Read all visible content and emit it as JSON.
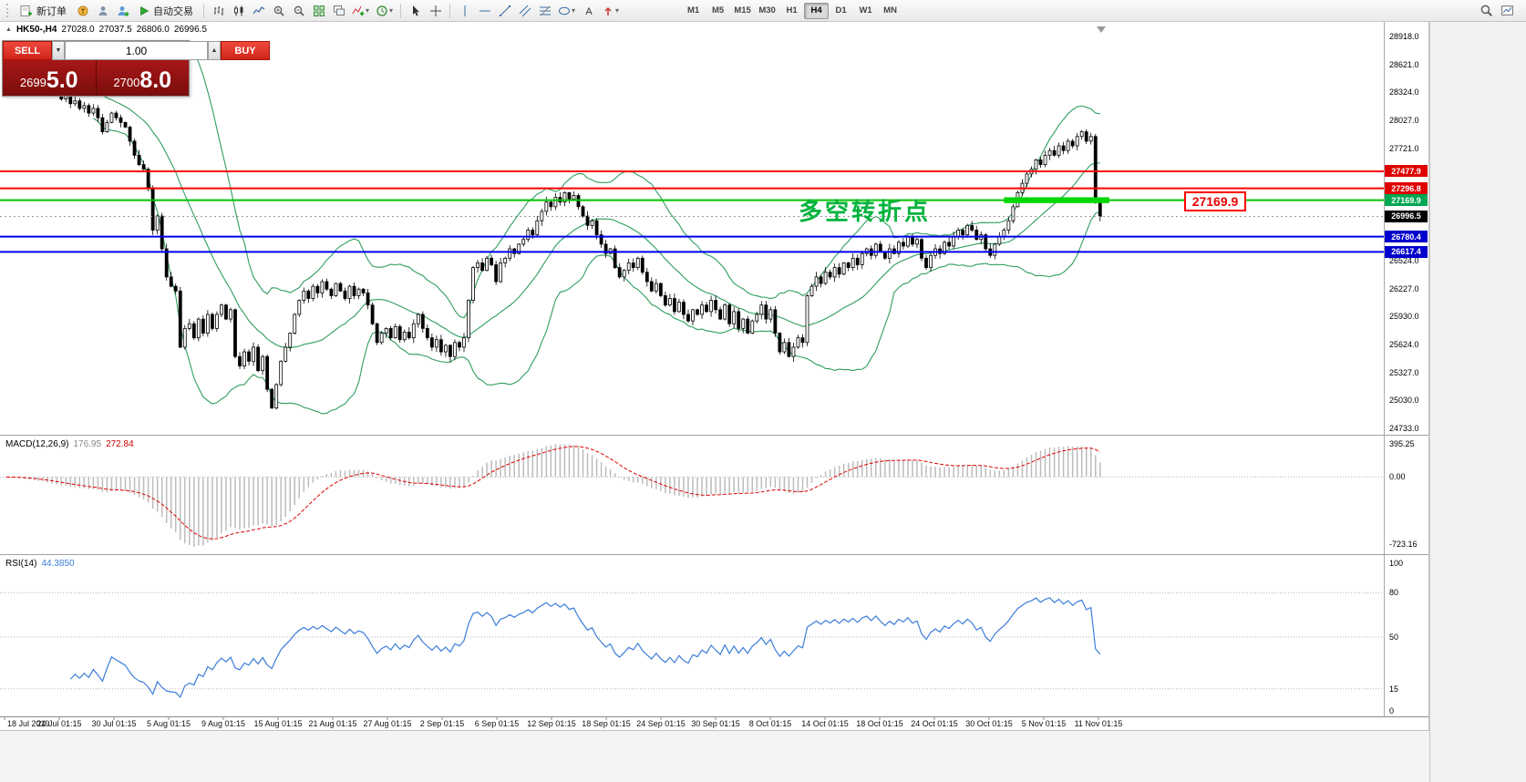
{
  "toolbar": {
    "new_order_label": "新订单",
    "autotrading_label": "自动交易",
    "timeframes": [
      {
        "label": "M1",
        "active": false
      },
      {
        "label": "M5",
        "active": false
      },
      {
        "label": "M15",
        "active": false
      },
      {
        "label": "M30",
        "active": false
      },
      {
        "label": "H1",
        "active": false
      },
      {
        "label": "H4",
        "active": true
      },
      {
        "label": "D1",
        "active": false
      },
      {
        "label": "W1",
        "active": false
      },
      {
        "label": "MN",
        "active": false
      }
    ]
  },
  "info_bar": {
    "symbol_period": "HK50-,H4",
    "open": "27028.0",
    "high": "27037.5",
    "low": "26806.0",
    "close": "26996.5"
  },
  "one_click": {
    "sell_label": "SELL",
    "buy_label": "BUY",
    "lot": "1.00",
    "sell_price": "26995.0",
    "buy_price": "27008.0"
  },
  "colors": {
    "candle_up": "#ffffff",
    "candle_down": "#000000",
    "candle_stroke": "#000000",
    "bollinger": "#2e9e5e",
    "macd_hist": "#bcbcbc",
    "macd_signal": "#e00000",
    "rsi_line": "#3b7dd8",
    "line_red": "#ff0000",
    "line_green": "#00c400",
    "line_blue": "#0000ee",
    "tag_red": "#e00000",
    "tag_green": "#00a650",
    "tag_blue": "#0000cc",
    "tag_black": "#000000",
    "annotation_green": "#00b33c",
    "segment_green": "#00d800"
  },
  "chart_data": {
    "type": "candlestick-with-indicators",
    "symbol": "HK50-",
    "period": "H4",
    "ohlc_display": {
      "open": "27028.0",
      "high": "27037.5",
      "low": "26806.0",
      "close": "26996.5"
    },
    "bars": 240,
    "closes": [
      28600,
      28550,
      28580,
      28500,
      28520,
      28450,
      28480,
      28400,
      28420,
      28350,
      28300,
      28320,
      28250,
      28280,
      28200,
      28230,
      28150,
      28180,
      28100,
      28150,
      28050,
      27900,
      28000,
      28100,
      28050,
      28000,
      27950,
      27800,
      27650,
      27550,
      27500,
      27300,
      26850,
      27000,
      26650,
      26350,
      26250,
      26200,
      25600,
      25800,
      25850,
      25700,
      25900,
      25750,
      25950,
      25800,
      25950,
      26050,
      25900,
      26000,
      25500,
      25400,
      25550,
      25450,
      25600,
      25350,
      25500,
      25150,
      24950,
      25200,
      25450,
      25600,
      25750,
      25950,
      26100,
      26200,
      26120,
      26250,
      26180,
      26300,
      26220,
      26150,
      26280,
      26200,
      26120,
      26250,
      26150,
      26220,
      26180,
      26050,
      25850,
      25650,
      25750,
      25800,
      25700,
      25820,
      25680,
      25760,
      25700,
      25850,
      25950,
      25800,
      25700,
      25600,
      25680,
      25550,
      25620,
      25500,
      25650,
      25600,
      25700,
      26100,
      26450,
      26500,
      26420,
      26550,
      26480,
      26300,
      26500,
      26550,
      26650,
      26600,
      26700,
      26750,
      26850,
      26800,
      26950,
      27050,
      27150,
      27100,
      27200,
      27150,
      27250,
      27180,
      27220,
      27100,
      27000,
      26900,
      26950,
      26800,
      26700,
      26600,
      26650,
      26450,
      26350,
      26420,
      26500,
      26450,
      26550,
      26400,
      26300,
      26200,
      26280,
      26150,
      26050,
      26120,
      25980,
      26080,
      25950,
      25880,
      26000,
      25950,
      26050,
      25980,
      26100,
      26000,
      25900,
      26050,
      25850,
      25980,
      25800,
      25900,
      25750,
      25880,
      25950,
      26050,
      25900,
      26000,
      25750,
      25550,
      25650,
      25500,
      25600,
      25700,
      25650,
      26150,
      26250,
      26350,
      26280,
      26400,
      26350,
      26450,
      26380,
      26500,
      26450,
      26550,
      26480,
      26600,
      26650,
      26580,
      26700,
      26620,
      26550,
      26650,
      26600,
      26720,
      26680,
      26780,
      26700,
      26750,
      26550,
      26450,
      26580,
      26650,
      26600,
      26720,
      26680,
      26780,
      26850,
      26800,
      26900,
      26850,
      26750,
      26800,
      26650,
      26580,
      26700,
      26780,
      26850,
      26950,
      27100,
      27250,
      27350,
      27450,
      27500,
      27600,
      27550,
      27650,
      27700,
      27650,
      27750,
      27700,
      27800,
      27750,
      27850,
      27900,
      27800,
      27850,
      27150,
      26996.5
    ],
    "scale": {
      "price_at_panel_top": 29035,
      "price_at_bottom_tick": 24733
    },
    "price_ticks": [
      {
        "label": "28918.0",
        "value": 28918
      },
      {
        "label": "28621.0",
        "value": 28621
      },
      {
        "label": "28324.0",
        "value": 28324
      },
      {
        "label": "28027.0",
        "value": 28027
      },
      {
        "label": "27721.0",
        "value": 27721
      },
      {
        "label": "26524.0",
        "value": 26524
      },
      {
        "label": "26227.0",
        "value": 26227
      },
      {
        "label": "25930.0",
        "value": 25930
      },
      {
        "label": "25624.0",
        "value": 25624
      },
      {
        "label": "25327.0",
        "value": 25327
      },
      {
        "label": "25030.0",
        "value": 25030
      },
      {
        "label": "24733.0",
        "value": 24733
      }
    ],
    "hlines": [
      {
        "price": 27477.9,
        "label": "27477.9",
        "color": "red"
      },
      {
        "price": 27296.8,
        "label": "27296.8",
        "color": "red"
      },
      {
        "price": 27169.9,
        "label": "27169.9",
        "color": "green",
        "thick_segment": {
          "from_bar": 218,
          "to_bar": 241
        }
      },
      {
        "price": 26780.4,
        "label": "26780.4",
        "color": "blue"
      },
      {
        "price": 26617.4,
        "label": "26617.4",
        "color": "blue"
      }
    ],
    "current_price": {
      "value": 26996.5,
      "label": "26996.5"
    },
    "bollinger": {
      "period": 20,
      "deviation": 2
    },
    "macd": {
      "label": "MACD(12,26,9)",
      "main": "176.95",
      "signal": "272.84",
      "fast": 12,
      "slow": 26,
      "signal_period": 9,
      "axis": [
        "395.25",
        "0.00",
        "-723.16"
      ]
    },
    "rsi": {
      "label": "RSI(14)",
      "value": "44.3850",
      "period": 14,
      "levels": [
        80,
        50,
        15
      ],
      "axis": [
        {
          "label": "100",
          "value": 100
        },
        {
          "label": "80",
          "value": 80
        },
        {
          "label": "50",
          "value": 50
        },
        {
          "label": "15",
          "value": 15
        },
        {
          "label": "0",
          "value": 0
        }
      ]
    },
    "time_labels": [
      "18 Jul 2019",
      "24 Jul 01:15",
      "30 Jul 01:15",
      "5 Aug 01:15",
      "9 Aug 01:15",
      "15 Aug 01:15",
      "21 Aug 01:15",
      "27 Aug 01:15",
      "2 Sep 01:15",
      "6 Sep 01:15",
      "12 Sep 01:15",
      "18 Sep 01:15",
      "24 Sep 01:15",
      "30 Sep 01:15",
      "8 Oct 01:15",
      "14 Oct 01:15",
      "18 Oct 01:15",
      "24 Oct 01:15",
      "30 Oct 01:15",
      "5 Nov 01:15",
      "11 Nov 01:15"
    ],
    "annotation": {
      "text": "多空转折点"
    },
    "callout": {
      "text": "27169.9"
    }
  }
}
